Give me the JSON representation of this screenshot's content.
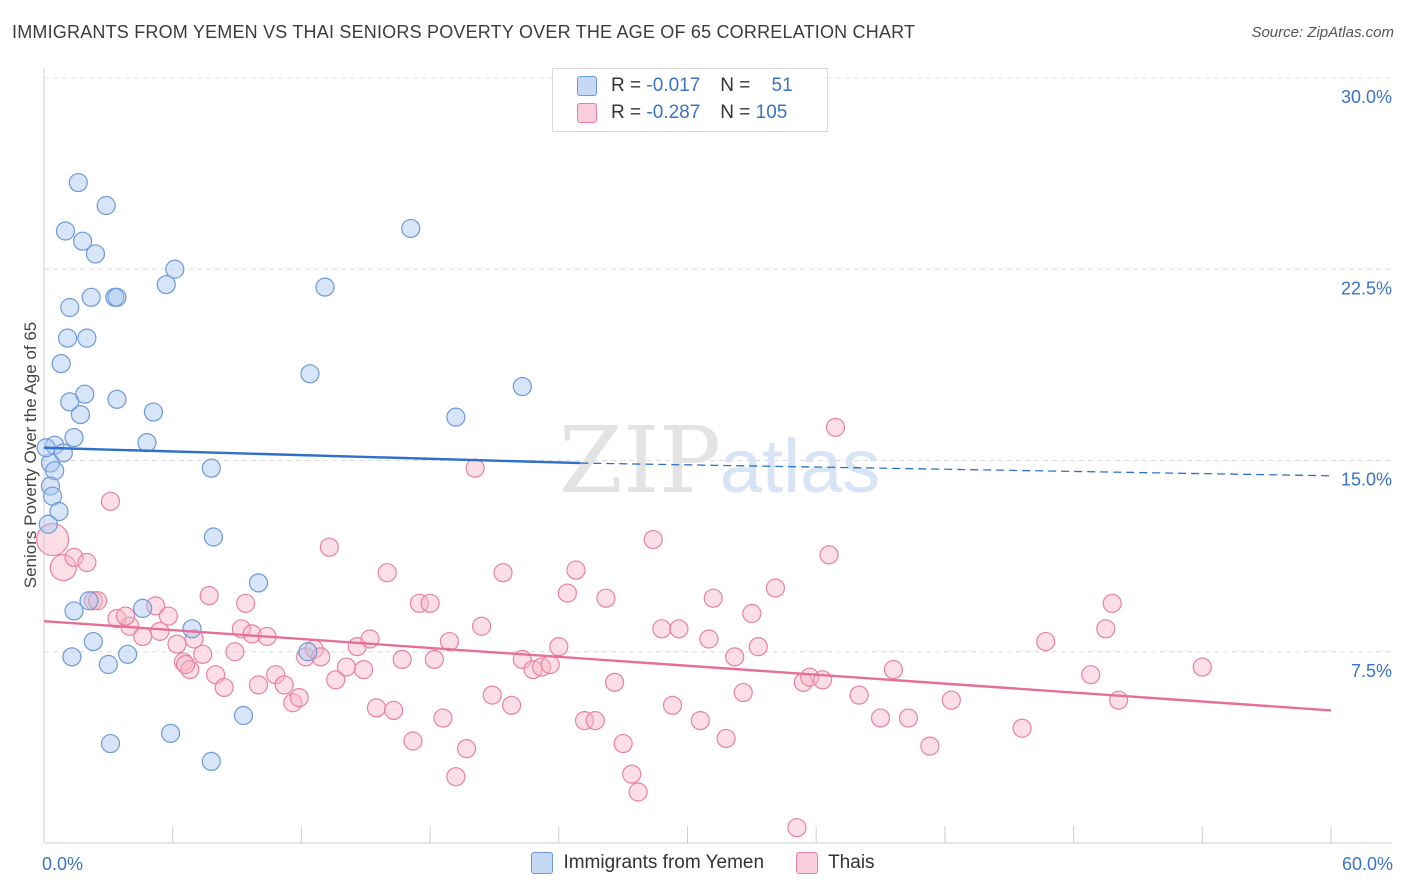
{
  "title": "IMMIGRANTS FROM YEMEN VS THAI SENIORS POVERTY OVER THE AGE OF 65 CORRELATION CHART",
  "source": "Source: ZipAtlas.com",
  "watermark": {
    "zip": "ZIP",
    "atlas": "atlas"
  },
  "legend_top": [
    {
      "r_label": "R =",
      "r_value": "-0.017",
      "n_label": "N =",
      "n_value": "51",
      "color": "#a9c6ef",
      "stroke": "#6c9ad8"
    },
    {
      "r_label": "R =",
      "r_value": "-0.287",
      "n_label": "N =",
      "n_value": "105",
      "color": "#f6b5c8",
      "stroke": "#e8829f"
    }
  ],
  "chart_data": {
    "type": "scatter",
    "xlabel": "",
    "ylabel": "Seniors Poverty Over the Age of 65",
    "xlim": [
      0,
      60
    ],
    "ylim": [
      0,
      30
    ],
    "x_tick_labels": [
      "0.0%",
      "60.0%"
    ],
    "y_ticks": [
      7.5,
      15.0,
      22.5,
      30.0
    ],
    "y_tick_labels": [
      "7.5%",
      "15.0%",
      "22.5%",
      "30.0%"
    ],
    "grid": true,
    "legend_position": "bottom",
    "series": [
      {
        "name": "Immigrants from Yemen",
        "color": "#a9c6ef",
        "stroke": "#6c9ad8",
        "line_color": "#2f70c8",
        "trend": {
          "x0": 0,
          "y0": 15.5,
          "x1": 25,
          "y1": 14.9,
          "dash_to_x": 60,
          "dash_to_y": 14.4
        },
        "points": [
          [
            1.6,
            25.9
          ],
          [
            2.9,
            25.0
          ],
          [
            1.0,
            24.0
          ],
          [
            1.8,
            23.6
          ],
          [
            2.4,
            23.1
          ],
          [
            6.1,
            22.5
          ],
          [
            5.7,
            21.9
          ],
          [
            13.1,
            21.8
          ],
          [
            2.2,
            21.4
          ],
          [
            3.3,
            21.4
          ],
          [
            3.4,
            21.4
          ],
          [
            1.2,
            21.0
          ],
          [
            1.1,
            19.8
          ],
          [
            2.0,
            19.8
          ],
          [
            0.8,
            18.8
          ],
          [
            12.4,
            18.4
          ],
          [
            22.3,
            17.9
          ],
          [
            1.9,
            17.6
          ],
          [
            1.2,
            17.3
          ],
          [
            3.4,
            17.4
          ],
          [
            5.1,
            16.9
          ],
          [
            1.7,
            16.8
          ],
          [
            19.2,
            16.7
          ],
          [
            17.1,
            24.1
          ],
          [
            1.4,
            15.9
          ],
          [
            0.5,
            15.6
          ],
          [
            4.8,
            15.7
          ],
          [
            0.9,
            15.3
          ],
          [
            0.3,
            14.9
          ],
          [
            0.5,
            14.6
          ],
          [
            7.8,
            14.7
          ],
          [
            0.3,
            14.0
          ],
          [
            0.4,
            13.6
          ],
          [
            0.7,
            13.0
          ],
          [
            0.2,
            12.5
          ],
          [
            7.9,
            12.0
          ],
          [
            10.0,
            10.2
          ],
          [
            2.1,
            9.5
          ],
          [
            1.4,
            9.1
          ],
          [
            4.6,
            9.2
          ],
          [
            2.3,
            7.9
          ],
          [
            1.3,
            7.3
          ],
          [
            3.9,
            7.4
          ],
          [
            6.9,
            8.4
          ],
          [
            12.3,
            7.5
          ],
          [
            3.0,
            7.0
          ],
          [
            9.3,
            5.0
          ],
          [
            5.9,
            4.3
          ],
          [
            3.1,
            3.9
          ],
          [
            7.8,
            3.2
          ],
          [
            0.1,
            15.5
          ]
        ]
      },
      {
        "name": "Thais",
        "color": "#f6b5c8",
        "stroke": "#e8829f",
        "line_color": "#e4709a",
        "trend": {
          "x0": 0,
          "y0": 8.7,
          "x1": 60,
          "y1": 5.2
        },
        "points": [
          [
            0.4,
            11.9
          ],
          [
            0.9,
            10.8
          ],
          [
            1.4,
            11.2
          ],
          [
            2.0,
            11.0
          ],
          [
            3.1,
            13.4
          ],
          [
            2.3,
            9.5
          ],
          [
            3.4,
            8.8
          ],
          [
            4.0,
            8.5
          ],
          [
            4.6,
            8.1
          ],
          [
            5.2,
            9.3
          ],
          [
            5.4,
            8.3
          ],
          [
            5.8,
            8.9
          ],
          [
            6.2,
            7.8
          ],
          [
            6.5,
            7.1
          ],
          [
            6.8,
            6.8
          ],
          [
            7.0,
            8.0
          ],
          [
            7.4,
            7.4
          ],
          [
            7.7,
            9.7
          ],
          [
            8.0,
            6.6
          ],
          [
            8.4,
            6.1
          ],
          [
            8.9,
            7.5
          ],
          [
            9.2,
            8.4
          ],
          [
            9.4,
            9.4
          ],
          [
            9.7,
            8.2
          ],
          [
            10.0,
            6.2
          ],
          [
            10.4,
            8.1
          ],
          [
            10.8,
            6.6
          ],
          [
            11.2,
            6.2
          ],
          [
            11.6,
            5.5
          ],
          [
            11.9,
            5.7
          ],
          [
            12.2,
            7.3
          ],
          [
            12.6,
            7.6
          ],
          [
            12.9,
            7.3
          ],
          [
            13.3,
            11.6
          ],
          [
            13.6,
            6.4
          ],
          [
            14.1,
            6.9
          ],
          [
            14.6,
            7.7
          ],
          [
            14.9,
            6.8
          ],
          [
            15.2,
            8.0
          ],
          [
            15.5,
            5.3
          ],
          [
            16.0,
            10.6
          ],
          [
            16.3,
            5.2
          ],
          [
            16.7,
            7.2
          ],
          [
            17.2,
            4.0
          ],
          [
            17.5,
            9.4
          ],
          [
            18.0,
            9.4
          ],
          [
            18.2,
            7.2
          ],
          [
            18.6,
            4.9
          ],
          [
            18.9,
            7.9
          ],
          [
            19.2,
            2.6
          ],
          [
            19.7,
            3.7
          ],
          [
            20.1,
            14.7
          ],
          [
            20.4,
            8.5
          ],
          [
            20.9,
            5.8
          ],
          [
            21.4,
            10.6
          ],
          [
            21.8,
            5.4
          ],
          [
            22.3,
            7.2
          ],
          [
            22.8,
            6.8
          ],
          [
            23.2,
            6.9
          ],
          [
            23.6,
            7.0
          ],
          [
            24.0,
            7.7
          ],
          [
            24.4,
            9.8
          ],
          [
            24.8,
            10.7
          ],
          [
            25.2,
            4.8
          ],
          [
            25.7,
            4.8
          ],
          [
            26.2,
            9.6
          ],
          [
            26.6,
            6.3
          ],
          [
            27.0,
            3.9
          ],
          [
            27.4,
            2.7
          ],
          [
            27.7,
            2.0
          ],
          [
            28.4,
            11.9
          ],
          [
            28.8,
            8.4
          ],
          [
            29.3,
            5.4
          ],
          [
            29.6,
            8.4
          ],
          [
            30.6,
            4.8
          ],
          [
            31.0,
            8.0
          ],
          [
            31.2,
            9.6
          ],
          [
            31.8,
            4.1
          ],
          [
            32.2,
            7.3
          ],
          [
            32.6,
            5.9
          ],
          [
            33.0,
            9.0
          ],
          [
            33.3,
            7.7
          ],
          [
            34.1,
            10.0
          ],
          [
            35.1,
            0.6
          ],
          [
            35.4,
            6.3
          ],
          [
            35.7,
            6.5
          ],
          [
            36.3,
            6.4
          ],
          [
            36.6,
            11.3
          ],
          [
            36.9,
            16.3
          ],
          [
            38.0,
            5.8
          ],
          [
            39.0,
            4.9
          ],
          [
            39.6,
            6.8
          ],
          [
            40.3,
            4.9
          ],
          [
            41.3,
            3.8
          ],
          [
            42.3,
            5.6
          ],
          [
            45.6,
            4.5
          ],
          [
            46.7,
            7.9
          ],
          [
            48.8,
            6.6
          ],
          [
            49.5,
            8.4
          ],
          [
            49.8,
            9.4
          ],
          [
            50.1,
            5.6
          ],
          [
            54.0,
            6.9
          ],
          [
            2.5,
            9.5
          ],
          [
            3.8,
            8.9
          ],
          [
            6.6,
            7.0
          ]
        ]
      }
    ]
  }
}
